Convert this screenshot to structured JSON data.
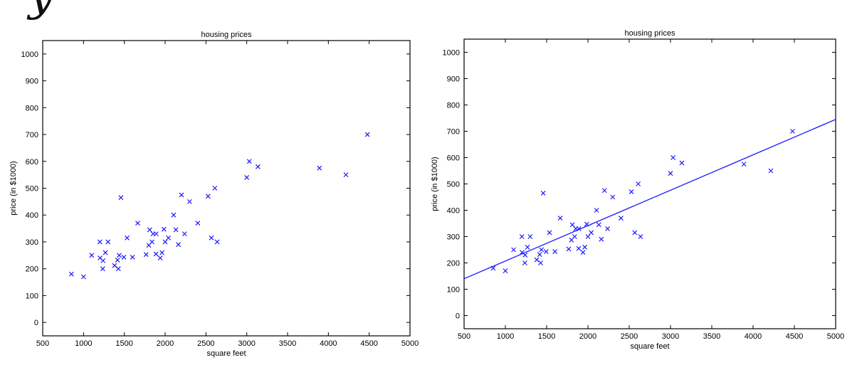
{
  "header": {
    "clipped_text": "y"
  },
  "colors": {
    "marker": "#1a1aff",
    "axis": "#000000",
    "fit_line": "#1a1aff"
  },
  "chart_data": [
    {
      "type": "scatter",
      "title": "housing prices",
      "xlabel": "square feet",
      "ylabel": "price (in $1000)",
      "xlim": [
        500,
        5000
      ],
      "ylim": [
        -50,
        1050
      ],
      "xticks": [
        500,
        1000,
        1500,
        2000,
        2500,
        3000,
        3500,
        4000,
        4500,
        5000
      ],
      "yticks": [
        0,
        100,
        200,
        300,
        400,
        500,
        600,
        700,
        800,
        900,
        1000
      ],
      "grid": false,
      "marker": "x",
      "series": [
        {
          "x": [
            852,
            1000,
            1100,
            1200,
            1203,
            1236,
            1239,
            1268,
            1300,
            1380,
            1416,
            1427,
            1437,
            1458,
            1494,
            1534,
            1600,
            1664,
            1767,
            1800,
            1811,
            1839,
            1852,
            1888,
            1890,
            1940,
            1962,
            1985,
            2000,
            2040,
            2104,
            2132,
            2162,
            2200,
            2238,
            2300,
            2400,
            2526,
            2567,
            2609,
            2637,
            3000,
            3031,
            3137,
            3890,
            4215,
            4478
          ],
          "y": [
            180,
            170,
            250,
            300,
            240,
            200,
            230,
            260,
            300,
            212,
            232,
            200,
            250,
            465,
            243,
            315,
            243,
            370,
            253,
            287,
            345,
            300,
            330,
            255,
            330,
            240,
            260,
            347,
            300,
            315,
            400,
            345,
            290,
            475,
            330,
            450,
            370,
            470,
            315,
            500,
            300,
            540,
            600,
            580,
            575,
            550,
            700
          ]
        }
      ]
    },
    {
      "type": "scatter",
      "title": "housing prices",
      "xlabel": "square feet",
      "ylabel": "price (in $1000)",
      "xlim": [
        500,
        5000
      ],
      "ylim": [
        -50,
        1050
      ],
      "xticks": [
        500,
        1000,
        1500,
        2000,
        2500,
        3000,
        3500,
        4000,
        4500,
        5000
      ],
      "yticks": [
        0,
        100,
        200,
        300,
        400,
        500,
        600,
        700,
        800,
        900,
        1000
      ],
      "grid": false,
      "marker": "x",
      "series": [
        {
          "x": [
            852,
            1000,
            1100,
            1200,
            1203,
            1236,
            1239,
            1268,
            1300,
            1380,
            1416,
            1427,
            1437,
            1458,
            1494,
            1534,
            1600,
            1664,
            1767,
            1800,
            1811,
            1839,
            1852,
            1888,
            1890,
            1940,
            1962,
            1985,
            2000,
            2040,
            2104,
            2132,
            2162,
            2200,
            2238,
            2300,
            2400,
            2526,
            2567,
            2609,
            2637,
            3000,
            3031,
            3137,
            3890,
            4215,
            4478
          ],
          "y": [
            180,
            170,
            250,
            300,
            240,
            200,
            230,
            260,
            300,
            212,
            232,
            200,
            250,
            465,
            243,
            315,
            243,
            370,
            253,
            287,
            345,
            300,
            330,
            255,
            330,
            240,
            260,
            347,
            300,
            315,
            400,
            345,
            290,
            475,
            330,
            450,
            370,
            470,
            315,
            500,
            300,
            540,
            600,
            580,
            575,
            550,
            700
          ]
        }
      ],
      "fit_line": {
        "x": [
          500,
          5000
        ],
        "y": [
          140,
          745
        ]
      }
    }
  ]
}
